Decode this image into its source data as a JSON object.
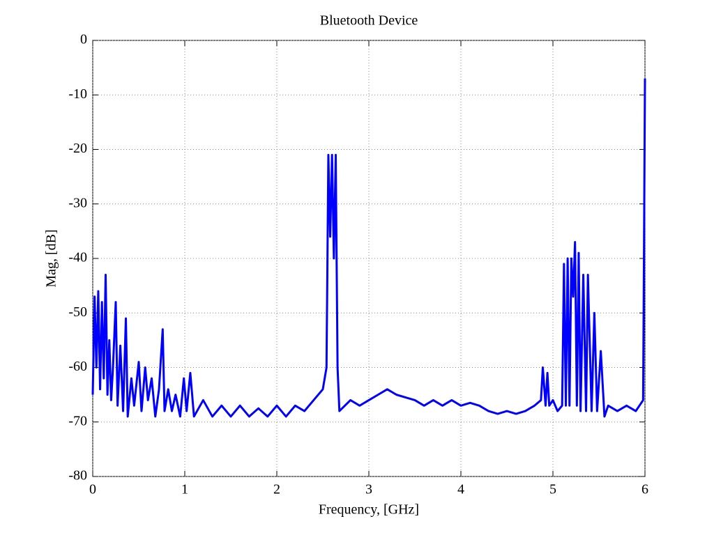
{
  "chart_data": {
    "type": "line",
    "title": "Bluetooth Device",
    "xlabel": "Frequency, [GHz]",
    "ylabel": "Mag, [dB]",
    "x": [
      0.0,
      0.02,
      0.04,
      0.06,
      0.08,
      0.1,
      0.12,
      0.14,
      0.16,
      0.18,
      0.2,
      0.22,
      0.25,
      0.27,
      0.3,
      0.33,
      0.36,
      0.38,
      0.42,
      0.45,
      0.5,
      0.53,
      0.57,
      0.6,
      0.64,
      0.68,
      0.72,
      0.76,
      0.78,
      0.82,
      0.86,
      0.9,
      0.95,
      0.99,
      1.02,
      1.06,
      1.1,
      1.2,
      1.3,
      1.4,
      1.5,
      1.6,
      1.7,
      1.8,
      1.9,
      2.0,
      2.1,
      2.2,
      2.3,
      2.4,
      2.5,
      2.54,
      2.56,
      2.58,
      2.6,
      2.62,
      2.64,
      2.66,
      2.68,
      2.8,
      2.9,
      3.0,
      3.1,
      3.2,
      3.3,
      3.4,
      3.5,
      3.6,
      3.7,
      3.8,
      3.9,
      4.0,
      4.1,
      4.2,
      4.3,
      4.4,
      4.5,
      4.6,
      4.7,
      4.8,
      4.87,
      4.89,
      4.92,
      4.94,
      4.96,
      5.0,
      5.05,
      5.1,
      5.12,
      5.14,
      5.16,
      5.18,
      5.2,
      5.22,
      5.24,
      5.26,
      5.28,
      5.3,
      5.33,
      5.36,
      5.38,
      5.42,
      5.45,
      5.48,
      5.52,
      5.56,
      5.6,
      5.7,
      5.8,
      5.9,
      5.98,
      5.99,
      6.0
    ],
    "series": [
      {
        "name": "Mag",
        "color": "#0000ff",
        "values": [
          -65,
          -47,
          -60,
          -46,
          -64,
          -48,
          -62,
          -43,
          -65,
          -55,
          -66,
          -60,
          -48,
          -67,
          -56,
          -68,
          -51,
          -69,
          -62,
          -67,
          -59,
          -68,
          -60,
          -66,
          -62,
          -69,
          -64,
          -53,
          -68,
          -64,
          -68,
          -65,
          -69,
          -62,
          -68,
          -61,
          -69,
          -66,
          -69,
          -67,
          -69,
          -67,
          -69,
          -67.5,
          -69,
          -67,
          -69,
          -67,
          -68,
          -66,
          -64,
          -60,
          -21,
          -36,
          -21,
          -40,
          -21,
          -60,
          -68,
          -66,
          -67,
          -66,
          -65,
          -64,
          -65,
          -65.5,
          -66,
          -67,
          -66,
          -67,
          -66,
          -67,
          -66.5,
          -67,
          -68,
          -68.5,
          -68,
          -68.5,
          -68,
          -67,
          -66,
          -60,
          -67,
          -61,
          -67,
          -66,
          -68,
          -67,
          -41,
          -67,
          -40,
          -67,
          -40,
          -47,
          -37,
          -67,
          -39,
          -68,
          -43,
          -68,
          -43,
          -68,
          -50,
          -68,
          -57,
          -69,
          -67,
          -68,
          -67,
          -68,
          -66,
          -37,
          -7
        ]
      }
    ],
    "xlim": [
      0,
      6
    ],
    "xticks": [
      0,
      1,
      2,
      3,
      4,
      5,
      6
    ],
    "ylim": [
      -80,
      0
    ],
    "yticks": [
      -80,
      -70,
      -60,
      -50,
      -40,
      -30,
      -20,
      -10,
      0
    ],
    "grid": true
  }
}
